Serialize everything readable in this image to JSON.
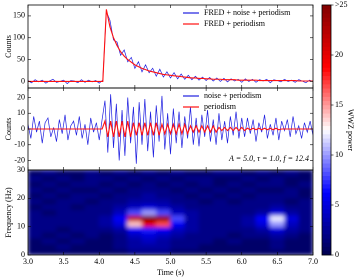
{
  "chart_data": [
    {
      "type": "line",
      "ylabel": "Counts",
      "legend": "upper right",
      "xlim": [
        3,
        7
      ],
      "ylim": [
        -15,
        175
      ],
      "yticks": [
        0,
        50,
        100,
        150
      ],
      "x": [
        3,
        3.05,
        3.1,
        3.15,
        3.2,
        3.25,
        3.3,
        3.35,
        3.4,
        3.45,
        3.5,
        3.55,
        3.6,
        3.65,
        3.7,
        3.75,
        3.8,
        3.85,
        3.9,
        3.95,
        4,
        4.05,
        4.1,
        4.15,
        4.2,
        4.25,
        4.3,
        4.35,
        4.4,
        4.45,
        4.5,
        4.55,
        4.6,
        4.65,
        4.7,
        4.75,
        4.8,
        4.85,
        4.9,
        4.95,
        5,
        5.05,
        5.1,
        5.15,
        5.2,
        5.25,
        5.3,
        5.35,
        5.4,
        5.45,
        5.5,
        5.55,
        5.6,
        5.65,
        5.7,
        5.75,
        5.8,
        5.85,
        5.9,
        5.95,
        6,
        6.05,
        6.1,
        6.15,
        6.2,
        6.25,
        6.3,
        6.35,
        6.4,
        6.45,
        6.5,
        6.55,
        6.6,
        6.65,
        6.7,
        6.75,
        6.8,
        6.85,
        6.9,
        6.95,
        7
      ],
      "series": [
        {
          "name": "FRED + noise + periodism",
          "color": "#1f1fe0",
          "values": [
            2,
            -3,
            4,
            -1,
            3,
            -4,
            1,
            5,
            -2,
            0,
            3,
            -5,
            2,
            1,
            -3,
            4,
            -2,
            3,
            -1,
            2,
            -4,
            3,
            160,
            140,
            95,
            90,
            60,
            72,
            45,
            55,
            30,
            45,
            22,
            38,
            20,
            30,
            12,
            28,
            10,
            22,
            8,
            20,
            6,
            17,
            5,
            14,
            4,
            12,
            3,
            10,
            2,
            9,
            1,
            8,
            0,
            7,
            -1,
            6,
            1,
            5,
            -2,
            6,
            0,
            5,
            -2,
            4,
            1,
            5,
            -3,
            4,
            2,
            -1,
            5,
            0,
            3,
            -2,
            4,
            1,
            -3,
            3,
            0
          ]
        },
        {
          "name": "FRED + periodism",
          "color": "#ff1010",
          "values": [
            0,
            0,
            0,
            0,
            0,
            0,
            0,
            0,
            0,
            0,
            0,
            0,
            0,
            0,
            0,
            0,
            0,
            0,
            0,
            0,
            0,
            0,
            165,
            125,
            100,
            82,
            68,
            58,
            50,
            44,
            38,
            34,
            30,
            27,
            24,
            22,
            20,
            18,
            16,
            15,
            14,
            13,
            12,
            11,
            10,
            9,
            8,
            8,
            7,
            7,
            6,
            6,
            5,
            5,
            5,
            4,
            4,
            4,
            4,
            3,
            3,
            3,
            3,
            3,
            3,
            2,
            2,
            2,
            2,
            2,
            2,
            2,
            2,
            2,
            2,
            2,
            1,
            1,
            1,
            1,
            1
          ]
        }
      ]
    },
    {
      "type": "line",
      "ylabel": "Counts",
      "legend": "upper right",
      "annotation": "A = 5.0, τ = 1.0, f = 12.4",
      "annotation_color": "#ff1010",
      "xlim": [
        3,
        7
      ],
      "ylim": [
        -26,
        26
      ],
      "yticks": [
        -20,
        -10,
        0,
        10,
        20
      ],
      "x": [
        3,
        3.04,
        3.08,
        3.12,
        3.16,
        3.2,
        3.24,
        3.28,
        3.32,
        3.36,
        3.4,
        3.44,
        3.48,
        3.52,
        3.56,
        3.6,
        3.64,
        3.68,
        3.72,
        3.76,
        3.8,
        3.84,
        3.88,
        3.92,
        3.96,
        4,
        4.04,
        4.08,
        4.12,
        4.16,
        4.2,
        4.24,
        4.28,
        4.32,
        4.36,
        4.4,
        4.44,
        4.48,
        4.52,
        4.56,
        4.6,
        4.64,
        4.68,
        4.72,
        4.76,
        4.8,
        4.84,
        4.88,
        4.92,
        4.96,
        5,
        5.04,
        5.08,
        5.12,
        5.16,
        5.2,
        5.24,
        5.28,
        5.32,
        5.36,
        5.4,
        5.44,
        5.48,
        5.52,
        5.56,
        5.6,
        5.64,
        5.68,
        5.72,
        5.76,
        5.8,
        5.84,
        5.88,
        5.92,
        5.96,
        6,
        6.04,
        6.08,
        6.12,
        6.16,
        6.2,
        6.24,
        6.28,
        6.32,
        6.36,
        6.4,
        6.44,
        6.48,
        6.52,
        6.56,
        6.6,
        6.64,
        6.68,
        6.72,
        6.76,
        6.8,
        6.84,
        6.88,
        6.92,
        6.96,
        7
      ],
      "series": [
        {
          "name": "noise + periodism",
          "color": "#1f1fe0",
          "values": [
            3,
            -6,
            8,
            -2,
            5,
            -9,
            4,
            7,
            -5,
            1,
            -8,
            6,
            -3,
            9,
            -7,
            2,
            5,
            -4,
            8,
            -6,
            3,
            -10,
            7,
            -2,
            4,
            -7,
            6,
            18,
            -15,
            22,
            -12,
            16,
            -20,
            12,
            -17,
            20,
            -9,
            14,
            -22,
            17,
            -10,
            19,
            -14,
            11,
            -18,
            15,
            -8,
            21,
            -13,
            10,
            -16,
            13,
            -9,
            11,
            -12,
            8,
            -6,
            14,
            -10,
            7,
            -11,
            9,
            -5,
            12,
            -8,
            6,
            -10,
            10,
            -7,
            5,
            -9,
            8,
            -4,
            11,
            -6,
            7,
            -5,
            7,
            -3,
            6,
            -8,
            4,
            -2,
            9,
            -6,
            3,
            -4,
            7,
            -7,
            5,
            -1,
            6,
            -5,
            8,
            -3,
            2,
            -6,
            4,
            -2,
            5,
            -4
          ]
        },
        {
          "name": "periodism",
          "color": "#ff1010",
          "values": [
            0,
            0,
            0,
            0,
            0,
            0,
            0,
            0,
            0,
            0,
            0,
            0,
            0,
            0,
            0,
            0,
            0,
            0,
            0,
            0,
            0,
            0,
            0,
            0,
            0,
            0,
            0,
            5,
            -5,
            5,
            -5,
            5,
            -5,
            5,
            -5,
            5,
            -5,
            4,
            -4,
            4,
            -4,
            4,
            -4,
            4,
            -4,
            4,
            -4,
            3,
            -3,
            3,
            -3,
            3,
            -3,
            3,
            -3,
            3,
            -3,
            2,
            -2,
            2,
            -2,
            2,
            -2,
            2,
            -2,
            2,
            -2,
            1,
            -1,
            1,
            -1,
            1,
            -1,
            1,
            -1,
            1,
            -1,
            0.5,
            -0.5,
            0.5,
            -0.5,
            0.5,
            -0.5,
            0.5,
            -0.5,
            0.5,
            -0.5,
            0.5,
            -0.5,
            0,
            0,
            0,
            0,
            0,
            0,
            0,
            0,
            0,
            0,
            0,
            0
          ]
        }
      ]
    },
    {
      "type": "heatmap",
      "ylabel": "Frequency (Hz)",
      "xlabel": "Time (s)",
      "xlim": [
        3,
        7
      ],
      "ylim": [
        0,
        30
      ],
      "xticks": [
        {
          "value": 3,
          "label": "3.0"
        },
        3.5,
        {
          "value": 4,
          "label": "4.0"
        },
        4.5,
        {
          "value": 5,
          "label": "5.0"
        },
        5.5,
        {
          "value": 6,
          "label": "6.0"
        },
        6.5,
        {
          "value": 7,
          "label": "7.0"
        }
      ],
      "yticks": [
        0,
        10,
        20,
        30
      ],
      "x_edges": [
        3,
        3.2,
        3.4,
        3.6,
        3.8,
        4,
        4.2,
        4.4,
        4.6,
        4.8,
        5,
        5.2,
        5.4,
        5.6,
        5.8,
        6,
        6.2,
        6.4,
        6.6,
        6.8,
        7
      ],
      "y_edges": [
        0,
        2,
        4,
        6,
        8,
        10,
        12,
        14,
        16,
        18,
        20,
        22,
        24,
        26,
        28,
        30
      ],
      "z": [
        [
          1,
          1,
          1,
          1,
          1,
          1,
          1,
          2,
          2,
          2,
          1,
          1,
          1,
          1,
          1,
          1,
          1,
          1,
          1,
          1
        ],
        [
          1,
          1,
          2,
          1,
          1,
          1,
          2,
          3,
          3,
          3,
          2,
          2,
          1,
          1,
          1,
          1,
          1,
          2,
          1,
          1
        ],
        [
          1,
          2,
          1,
          2,
          1,
          1,
          2,
          3,
          4,
          3,
          2,
          2,
          2,
          1,
          2,
          1,
          1,
          2,
          1,
          1
        ],
        [
          2,
          1,
          2,
          1,
          2,
          1,
          2,
          4,
          5,
          4,
          3,
          2,
          2,
          2,
          1,
          2,
          2,
          3,
          2,
          1
        ],
        [
          2,
          2,
          1,
          2,
          2,
          2,
          3,
          6,
          7,
          6,
          4,
          3,
          2,
          2,
          2,
          2,
          3,
          5,
          3,
          2
        ],
        [
          2,
          2,
          2,
          2,
          2,
          3,
          5,
          14,
          20,
          17,
          6,
          3,
          2,
          2,
          2,
          3,
          5,
          10,
          4,
          2
        ],
        [
          2,
          2,
          2,
          2,
          2,
          3,
          6,
          22,
          27,
          24,
          8,
          3,
          2,
          2,
          2,
          3,
          6,
          12,
          5,
          2
        ],
        [
          2,
          1,
          2,
          2,
          2,
          2,
          4,
          8,
          10,
          8,
          4,
          3,
          2,
          2,
          2,
          2,
          3,
          5,
          3,
          2
        ],
        [
          1,
          2,
          2,
          1,
          2,
          2,
          3,
          4,
          5,
          4,
          3,
          2,
          2,
          2,
          2,
          2,
          2,
          3,
          2,
          2
        ],
        [
          2,
          1,
          2,
          2,
          1,
          2,
          2,
          3,
          3,
          3,
          2,
          2,
          1,
          2,
          1,
          2,
          2,
          2,
          1,
          2
        ],
        [
          1,
          2,
          1,
          2,
          2,
          1,
          2,
          2,
          3,
          2,
          2,
          1,
          2,
          1,
          2,
          1,
          2,
          2,
          2,
          1
        ],
        [
          2,
          1,
          2,
          1,
          1,
          2,
          1,
          2,
          2,
          2,
          1,
          2,
          1,
          2,
          1,
          2,
          1,
          1,
          2,
          1
        ],
        [
          1,
          2,
          1,
          2,
          2,
          1,
          2,
          1,
          2,
          1,
          2,
          1,
          2,
          1,
          2,
          1,
          2,
          2,
          1,
          2
        ],
        [
          2,
          1,
          2,
          1,
          2,
          2,
          1,
          2,
          1,
          2,
          1,
          2,
          2,
          1,
          1,
          2,
          1,
          2,
          1,
          1
        ],
        [
          1,
          2,
          1,
          1,
          2,
          1,
          2,
          1,
          2,
          1,
          2,
          1,
          1,
          2,
          2,
          1,
          2,
          1,
          2,
          1
        ]
      ],
      "colorbar": {
        "label": "WWZ power",
        "zlim": [
          0,
          25
        ],
        "zticks": [
          0,
          5,
          10,
          15,
          20,
          {
            "value": 25,
            "label": ">25"
          }
        ],
        "colormap": [
          "#00004d",
          "#0000ff",
          "#ffffff",
          "#ff0000",
          "#800000"
        ]
      }
    }
  ]
}
